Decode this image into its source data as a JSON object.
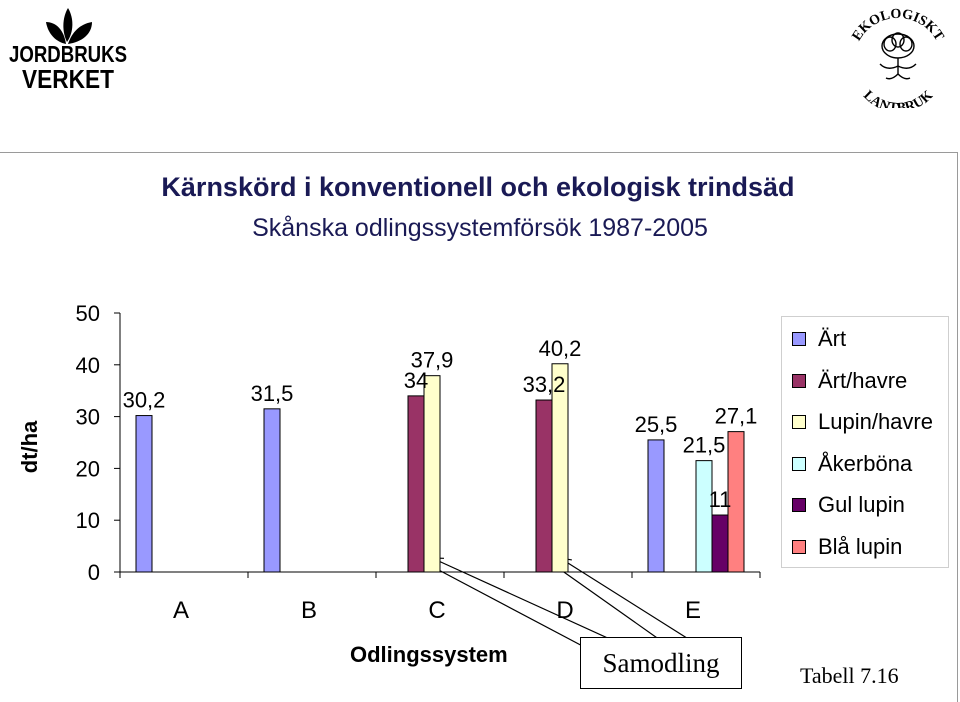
{
  "logos": {
    "left_text_line1": "JORDBRUKS",
    "left_text_line2": "VERKET",
    "right_ring_top": "EKOLOGISKT",
    "right_ring_bottom": "LANTBRUK"
  },
  "callout": {
    "label": "Samodling"
  },
  "footer": {
    "table_ref": "Tabell 7.16"
  },
  "chart_data": {
    "type": "bar",
    "title": "Kärnskörd i konventionell och ekologisk trindsäd",
    "subtitle": "Skånska odlingssystemförsök 1987-2005",
    "xlabel": "Odlingssystem",
    "ylabel": "dt/ha",
    "ylim": [
      0,
      50
    ],
    "yticks": [
      0,
      10,
      20,
      30,
      40,
      50
    ],
    "categories": [
      "A",
      "B",
      "C",
      "D",
      "E"
    ],
    "legend_position": "right",
    "series": [
      {
        "name": "Ärt",
        "color": "#9999ff",
        "values": [
          30.2,
          31.5,
          null,
          null,
          25.5
        ],
        "labels": [
          "30,2",
          "31,5",
          "",
          "",
          "25,5"
        ]
      },
      {
        "name": "Ärt/havre",
        "color": "#993366",
        "values": [
          null,
          null,
          34,
          33.2,
          null
        ],
        "labels": [
          "",
          "",
          "34",
          "33,2",
          ""
        ]
      },
      {
        "name": "Lupin/havre",
        "color": "#ffffcc",
        "values": [
          null,
          null,
          37.9,
          40.2,
          null
        ],
        "labels": [
          "",
          "",
          "37,9",
          "40,2",
          ""
        ]
      },
      {
        "name": "Åkerböna",
        "color": "#ccffff",
        "values": [
          null,
          null,
          null,
          null,
          21.5
        ],
        "labels": [
          "",
          "",
          "",
          "",
          "21,5"
        ]
      },
      {
        "name": "Gul lupin",
        "color": "#660066",
        "values": [
          null,
          null,
          null,
          null,
          11
        ],
        "labels": [
          "",
          "",
          "",
          "",
          "11"
        ]
      },
      {
        "name": "Blå lupin",
        "color": "#ff8080",
        "values": [
          null,
          null,
          null,
          null,
          27.1
        ],
        "labels": [
          "",
          "",
          "",
          "",
          "27,1"
        ]
      }
    ]
  }
}
